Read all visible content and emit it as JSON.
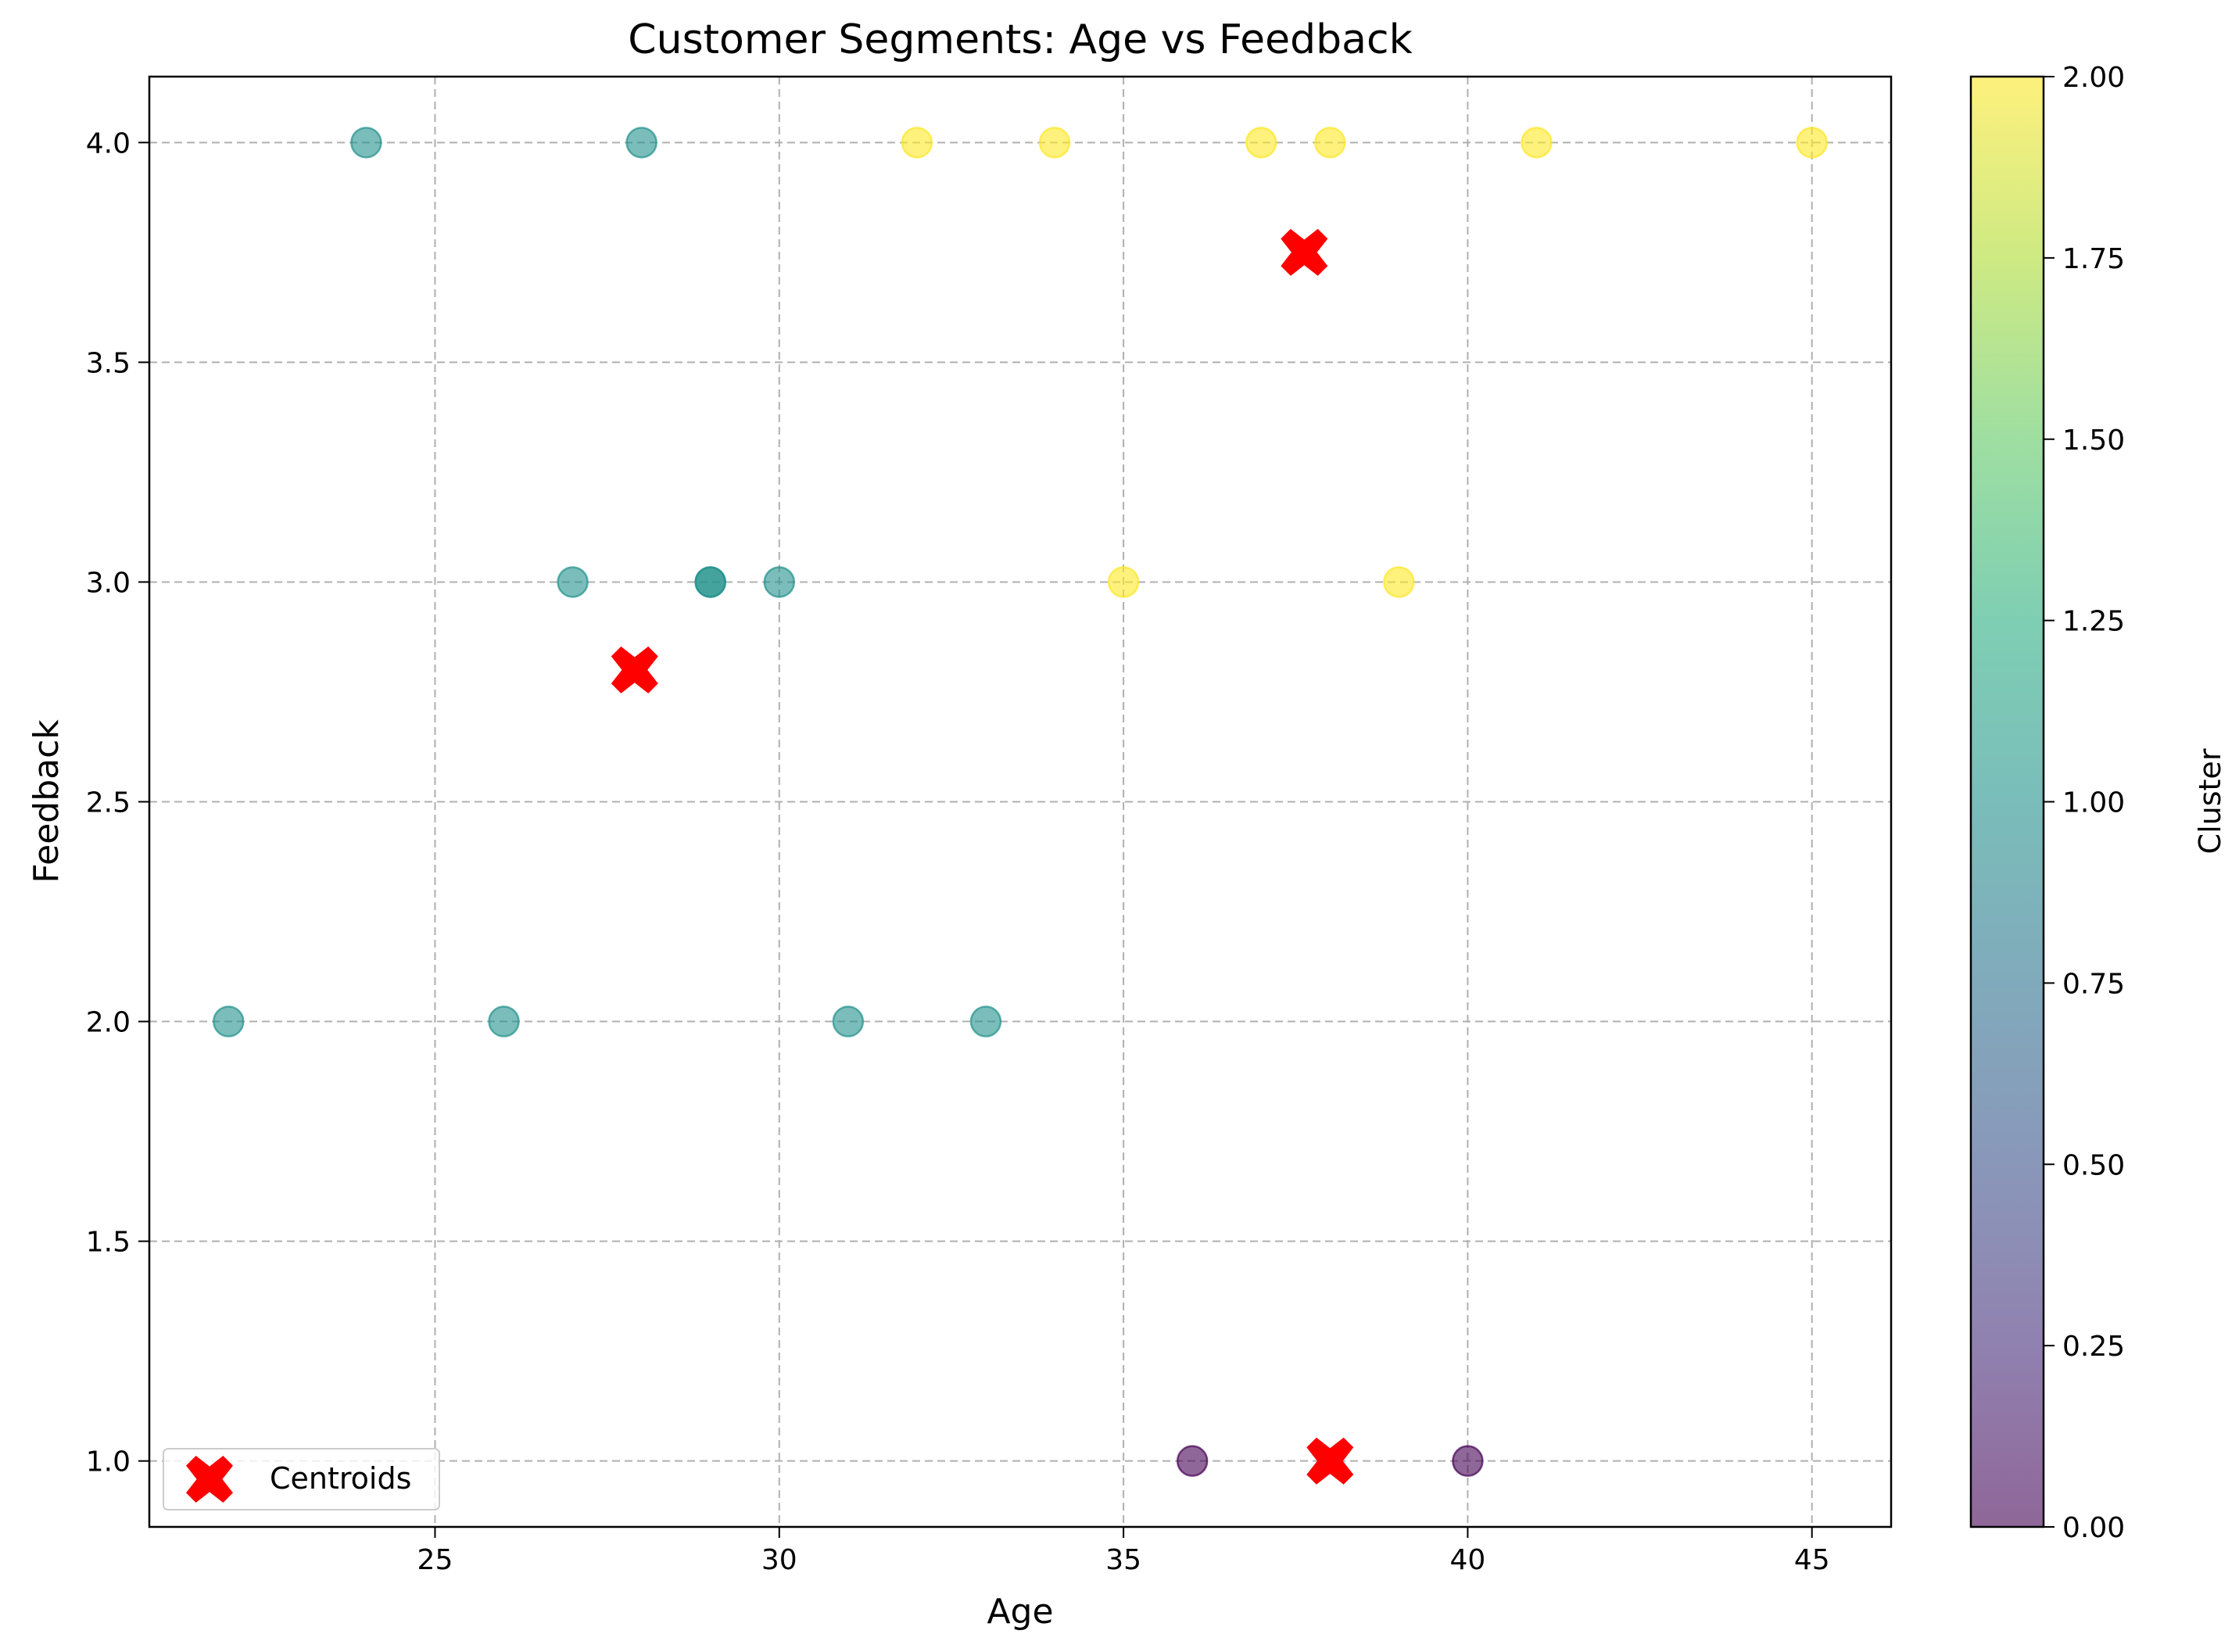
{
  "chart_data": {
    "type": "scatter",
    "title": "Customer Segments: Age vs Feedback",
    "xlabel": "Age",
    "ylabel": "Feedback",
    "xlim": [
      20.85,
      46.15
    ],
    "ylim": [
      0.85,
      4.15
    ],
    "xticks": [
      25,
      30,
      35,
      40,
      45
    ],
    "yticks": [
      1.0,
      1.5,
      2.0,
      2.5,
      3.0,
      3.5,
      4.0
    ],
    "grid": true,
    "legend": {
      "position": "lower-left",
      "entries": [
        "Centroids"
      ]
    },
    "colorbar": {
      "label": "Cluster",
      "range": [
        0,
        2
      ],
      "ticks": [
        "0.00",
        "0.25",
        "0.50",
        "0.75",
        "1.00",
        "1.25",
        "1.50",
        "1.75",
        "2.00"
      ],
      "colormap": "viridis"
    },
    "points": [
      {
        "x": 22,
        "y": 2,
        "cluster": 1
      },
      {
        "x": 24,
        "y": 4,
        "cluster": 1
      },
      {
        "x": 26,
        "y": 2,
        "cluster": 1
      },
      {
        "x": 27,
        "y": 3,
        "cluster": 1
      },
      {
        "x": 28,
        "y": 4,
        "cluster": 1
      },
      {
        "x": 29,
        "y": 3,
        "cluster": 1
      },
      {
        "x": 29,
        "y": 3,
        "cluster": 1
      },
      {
        "x": 30,
        "y": 3,
        "cluster": 1
      },
      {
        "x": 31,
        "y": 2,
        "cluster": 1
      },
      {
        "x": 33,
        "y": 2,
        "cluster": 1
      },
      {
        "x": 32,
        "y": 4,
        "cluster": 2
      },
      {
        "x": 34,
        "y": 4,
        "cluster": 2
      },
      {
        "x": 35,
        "y": 3,
        "cluster": 2
      },
      {
        "x": 37,
        "y": 4,
        "cluster": 2
      },
      {
        "x": 38,
        "y": 4,
        "cluster": 2
      },
      {
        "x": 39,
        "y": 3,
        "cluster": 2
      },
      {
        "x": 41,
        "y": 4,
        "cluster": 2
      },
      {
        "x": 45,
        "y": 4,
        "cluster": 2
      },
      {
        "x": 36,
        "y": 1,
        "cluster": 0
      },
      {
        "x": 40,
        "y": 1,
        "cluster": 0
      }
    ],
    "centroids": [
      {
        "x": 27.9,
        "y": 2.8
      },
      {
        "x": 37.625,
        "y": 3.75
      },
      {
        "x": 38.0,
        "y": 1.0
      }
    ],
    "colors": {
      "cluster_0": "#440154",
      "cluster_1": "#21918c",
      "cluster_2": "#fde725",
      "centroid": "#ff0000",
      "grid": "#b0b0b0"
    }
  }
}
